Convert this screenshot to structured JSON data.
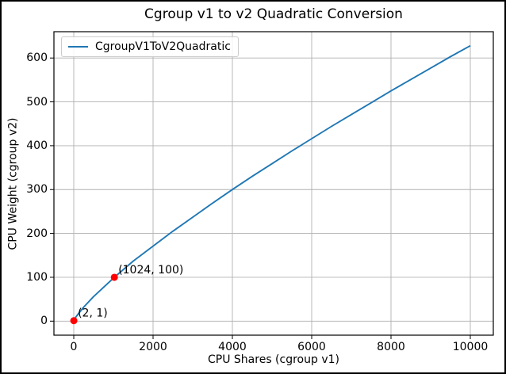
{
  "chart_data": {
    "type": "line",
    "title": "Cgroup v1 to v2 Quadratic Conversion",
    "xlabel": "CPU Shares (cgroup v1)",
    "ylabel": "CPU Weight (cgroup v2)",
    "xlim": [
      -500,
      10580
    ],
    "ylim": [
      -32,
      660
    ],
    "x_ticks": [
      0,
      2000,
      4000,
      6000,
      8000,
      10000
    ],
    "y_ticks": [
      0,
      100,
      200,
      300,
      400,
      500,
      600
    ],
    "grid": true,
    "grid_color": "#b0b0b0",
    "legend_position": "upper left",
    "series": [
      {
        "name": "CgroupV1ToV2Quadratic",
        "color": "#1f77b4",
        "x": [
          2,
          50,
          100,
          250,
          500,
          1024,
          1500,
          2000,
          2500,
          3000,
          3500,
          4000,
          4500,
          5000,
          5500,
          6000,
          6500,
          7000,
          7500,
          8000,
          8500,
          9000,
          9500,
          10000
        ],
        "y": [
          1,
          9,
          15,
          32,
          56,
          100,
          137,
          171,
          205,
          237,
          269,
          300,
          330,
          359,
          388,
          416,
          444,
          471,
          498,
          525,
          551,
          577,
          603,
          628
        ]
      }
    ],
    "annotated_points": [
      {
        "x": 2,
        "y": 1,
        "label": "(2, 1)",
        "color": "#ff0000"
      },
      {
        "x": 1024,
        "y": 100,
        "label": "(1024, 100)",
        "color": "#ff0000"
      }
    ]
  }
}
